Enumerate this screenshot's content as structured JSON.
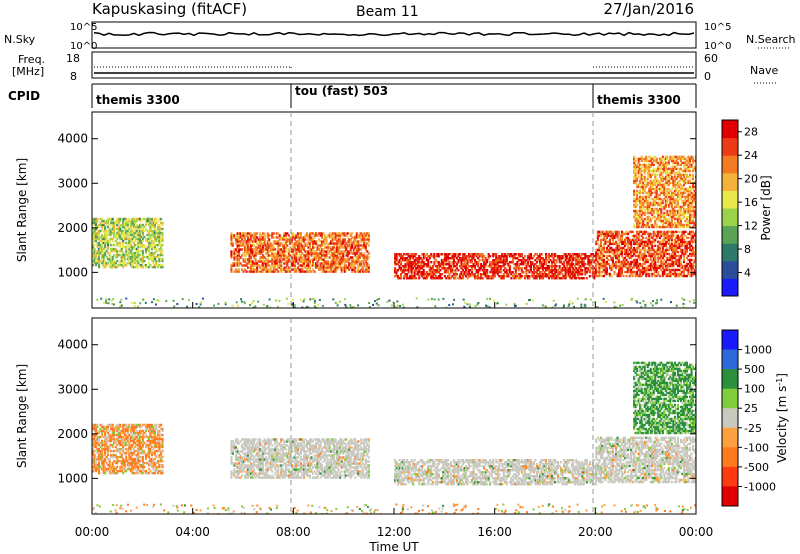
{
  "header": {
    "station": "Kapuskasing (fitACF)",
    "beam": "Beam 11",
    "date": "27/Jan/2016"
  },
  "strip_panels": {
    "nsky": {
      "left_label": "N.Sky",
      "right_label": "N.Search",
      "left_ticks": [
        "10^5",
        "10^0"
      ],
      "right_ticks": [
        "10^5",
        "10^0"
      ]
    },
    "freq": {
      "left_label_1": "Freq.",
      "left_label_2": "[MHz]",
      "right_label": "Nave",
      "left_ticks": [
        "18",
        "8"
      ],
      "right_ticks": [
        "60",
        "0"
      ]
    },
    "cpid": {
      "label": "CPID",
      "segments": [
        {
          "name": "themis 3300",
          "start": 0,
          "end": 8
        },
        {
          "name": "tou (fast) 503",
          "start": 8,
          "end": 20
        },
        {
          "name": "themis 3300",
          "start": 20,
          "end": 24
        }
      ]
    }
  },
  "colors": {
    "power_scale": [
      "#1a1aff",
      "#2c4c9c",
      "#2e7a6a",
      "#5aa356",
      "#9cd14a",
      "#e8e84a",
      "#f5b23a",
      "#f37a24",
      "#ec3a16",
      "#e00000"
    ],
    "velocity_scale": [
      "#1a1aff",
      "#2b6ad8",
      "#2b8f3c",
      "#80cc3a",
      "#c9c9c0",
      "#ffa040",
      "#ff7a1e",
      "#ff3a12",
      "#e00000"
    ]
  },
  "chart_data": [
    {
      "type": "heatmap",
      "title": "Power",
      "ylabel": "Slant Range [km]",
      "xlabel": "Time UT",
      "x_ticks": [
        "00:00",
        "04:00",
        "08:00",
        "12:00",
        "16:00",
        "20:00",
        "00:00"
      ],
      "xlim_hours": [
        0,
        24
      ],
      "y_ticks": [
        1000,
        2000,
        3000,
        4000
      ],
      "ylim": [
        200,
        4600
      ],
      "colorbar_label": "Power [dB]",
      "colorbar_ticks": [
        "28",
        "24",
        "20",
        "16",
        "12",
        "8",
        "4"
      ],
      "colorbar_range": [
        0,
        30
      ],
      "echo_bands": [
        {
          "t0": 0.0,
          "t1": 2.8,
          "r0": 1100,
          "r1": 2200,
          "level": 14
        },
        {
          "t0": 5.5,
          "t1": 11.0,
          "r0": 1000,
          "r1": 1900,
          "level": 24
        },
        {
          "t0": 12.0,
          "t1": 20.0,
          "r0": 850,
          "r1": 1400,
          "level": 28
        },
        {
          "t0": 20.0,
          "t1": 24.0,
          "r0": 900,
          "r1": 1900,
          "level": 26
        },
        {
          "t0": 21.5,
          "t1": 24.0,
          "r0": 2000,
          "r1": 3600,
          "level": 22
        }
      ]
    },
    {
      "type": "heatmap",
      "title": "Velocity",
      "ylabel": "Slant Range [km]",
      "xlabel": "Time UT",
      "x_ticks": [
        "00:00",
        "04:00",
        "08:00",
        "12:00",
        "16:00",
        "20:00",
        "00:00"
      ],
      "xlim_hours": [
        0,
        24
      ],
      "y_ticks": [
        1000,
        2000,
        3000,
        4000
      ],
      "ylim": [
        200,
        4600
      ],
      "colorbar_label": "Velocity [m s^-1]",
      "colorbar_ticks": [
        "1000",
        "500",
        "100",
        "25",
        "-25",
        "-100",
        "-500",
        "-1000"
      ],
      "echo_bands": [
        {
          "t0": 0.0,
          "t1": 2.8,
          "r0": 1100,
          "r1": 2200,
          "level": -100
        },
        {
          "t0": 5.5,
          "t1": 11.0,
          "r0": 1000,
          "r1": 1900,
          "level": 0
        },
        {
          "t0": 12.0,
          "t1": 20.0,
          "r0": 850,
          "r1": 1400,
          "level": 0
        },
        {
          "t0": 20.0,
          "t1": 24.0,
          "r0": 900,
          "r1": 1900,
          "level": 0
        },
        {
          "t0": 21.5,
          "t1": 24.0,
          "r0": 2000,
          "r1": 3600,
          "level": 150
        }
      ]
    }
  ]
}
